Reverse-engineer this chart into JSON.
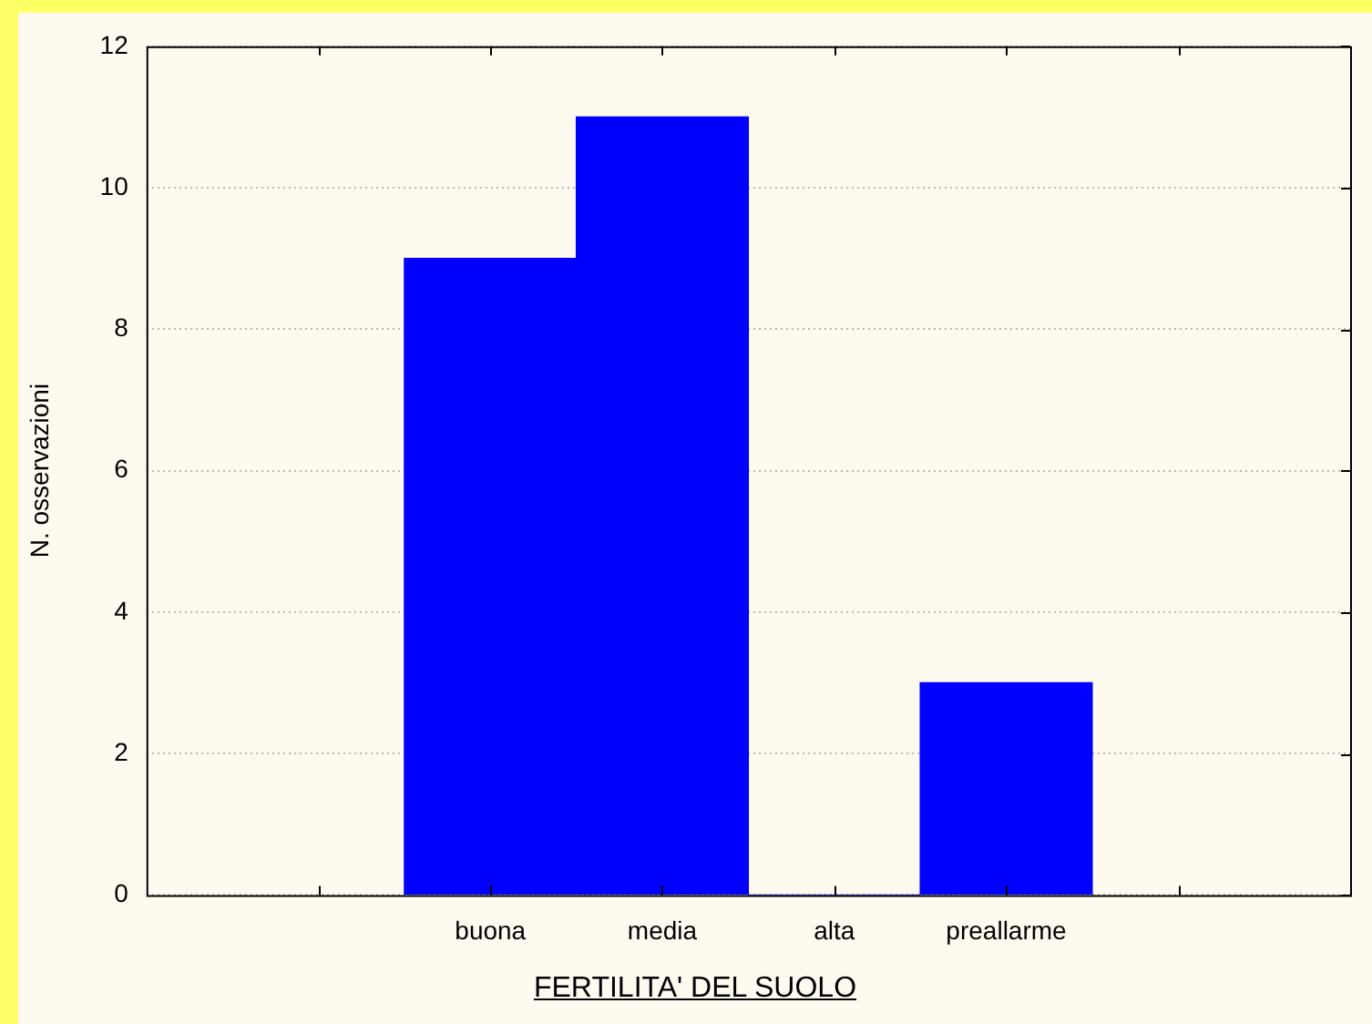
{
  "chart_data": {
    "type": "bar",
    "xlabel": "FERTILITA' DEL SUOLO",
    "ylabel": "N. osservazioni",
    "categories": [
      null,
      null,
      "buona",
      "media",
      "alta",
      "preallarme",
      null,
      null
    ],
    "values": [
      null,
      null,
      9,
      11,
      0,
      3,
      null,
      null
    ],
    "color": "#0000ff",
    "ylim": [
      0,
      12
    ],
    "yticks": [
      0,
      2,
      4,
      6,
      8,
      10,
      12
    ],
    "grid": "y",
    "legend": false
  }
}
